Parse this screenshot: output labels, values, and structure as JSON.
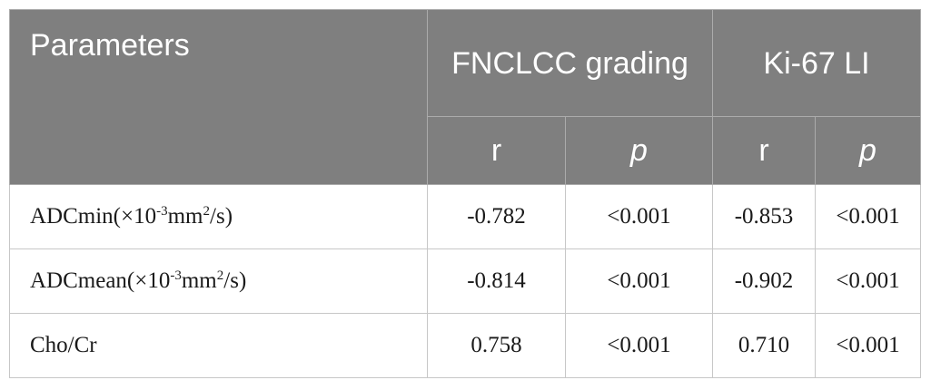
{
  "table": {
    "header": {
      "parameters": "Parameters",
      "group1": "FNCLCC grading",
      "group2": "Ki-67 LI",
      "sub": [
        "r",
        "p",
        "r",
        "p"
      ]
    },
    "rows": [
      {
        "param": {
          "pre": "ADCmin(×10",
          "sup1": "-3",
          "mid": "mm",
          "sup2": "2",
          "post": "/s)"
        },
        "values": [
          "-0.782",
          "<0.001",
          "-0.853",
          "<0.001"
        ]
      },
      {
        "param": {
          "pre": "ADCmean(×10",
          "sup1": "-3",
          "mid": "mm",
          "sup2": "2",
          "post": "/s)"
        },
        "values": [
          "-0.814",
          "<0.001",
          "-0.902",
          "<0.001"
        ]
      },
      {
        "param": {
          "text": "Cho/Cr"
        },
        "values": [
          "0.758",
          "<0.001",
          "0.710",
          "<0.001"
        ]
      }
    ]
  }
}
